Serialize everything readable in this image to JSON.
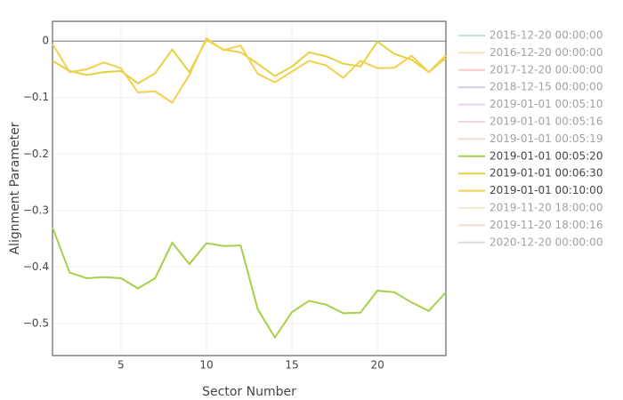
{
  "chart_data": {
    "type": "line",
    "xlabel": "Sector Number",
    "ylabel": "Alignment Parameter",
    "x": [
      1,
      2,
      3,
      4,
      5,
      6,
      7,
      8,
      9,
      10,
      11,
      12,
      13,
      14,
      15,
      16,
      17,
      18,
      19,
      20,
      21,
      22,
      23,
      24
    ],
    "xlim": [
      1,
      24
    ],
    "xticks": [
      5,
      10,
      15,
      20
    ],
    "ylim": [
      -0.557,
      0.035
    ],
    "yticks": [
      0,
      {
        "value": -0.1,
        "label": "−0.1"
      },
      {
        "value": -0.2,
        "label": "−0.2"
      },
      {
        "value": -0.3,
        "label": "−0.3"
      },
      {
        "value": -0.4,
        "label": "−0.4"
      },
      {
        "value": -0.5,
        "label": "−0.5"
      }
    ],
    "grid": true,
    "zeroline": true,
    "legend": "right",
    "series": [
      {
        "name": "2015-12-20 00:00:00",
        "color": "#7fc8b8",
        "visible": "legendonly",
        "values": [
          null,
          null,
          null,
          null,
          null,
          null,
          null,
          null,
          null,
          null,
          null,
          null,
          null,
          null,
          null,
          null,
          null,
          null,
          null,
          null,
          null,
          null,
          null,
          null
        ]
      },
      {
        "name": "2016-12-20 00:00:00",
        "color": "#f0c080",
        "visible": "legendonly",
        "values": [
          null,
          null,
          null,
          null,
          null,
          null,
          null,
          null,
          null,
          null,
          null,
          null,
          null,
          null,
          null,
          null,
          null,
          null,
          null,
          null,
          null,
          null,
          null,
          null
        ]
      },
      {
        "name": "2017-12-20 00:00:00",
        "color": "#f09090",
        "visible": "legendonly",
        "values": [
          null,
          null,
          null,
          null,
          null,
          null,
          null,
          null,
          null,
          null,
          null,
          null,
          null,
          null,
          null,
          null,
          null,
          null,
          null,
          null,
          null,
          null,
          null,
          null
        ]
      },
      {
        "name": "2018-12-15 00:00:00",
        "color": "#a0a0c8",
        "visible": "legendonly",
        "values": [
          null,
          null,
          null,
          null,
          null,
          null,
          null,
          null,
          null,
          null,
          null,
          null,
          null,
          null,
          null,
          null,
          null,
          null,
          null,
          null,
          null,
          null,
          null,
          null
        ]
      },
      {
        "name": "2019-01-01 00:05:10",
        "color": "#d8a0d8",
        "visible": "legendonly",
        "values": [
          null,
          null,
          null,
          null,
          null,
          null,
          null,
          null,
          null,
          null,
          null,
          null,
          null,
          null,
          null,
          null,
          null,
          null,
          null,
          null,
          null,
          null,
          null,
          null
        ]
      },
      {
        "name": "2019-01-01 00:05:16",
        "color": "#e8a8c8",
        "visible": "legendonly",
        "values": [
          null,
          null,
          null,
          null,
          null,
          null,
          null,
          null,
          null,
          null,
          null,
          null,
          null,
          null,
          null,
          null,
          null,
          null,
          null,
          null,
          null,
          null,
          null,
          null
        ]
      },
      {
        "name": "2019-01-01 00:05:19",
        "color": "#e8b8a8",
        "visible": "legendonly",
        "values": [
          null,
          null,
          null,
          null,
          null,
          null,
          null,
          null,
          null,
          null,
          null,
          null,
          null,
          null,
          null,
          null,
          null,
          null,
          null,
          null,
          null,
          null,
          null,
          null
        ]
      },
      {
        "name": "2019-01-01 00:05:20",
        "color": "#a6d04a",
        "visible": true,
        "values": [
          -0.33,
          -0.41,
          -0.42,
          -0.418,
          -0.42,
          -0.438,
          -0.42,
          -0.357,
          -0.395,
          -0.358,
          -0.363,
          -0.362,
          -0.475,
          -0.525,
          -0.48,
          -0.46,
          -0.467,
          -0.482,
          -0.481,
          -0.442,
          -0.445,
          -0.463,
          -0.478,
          -0.445
        ]
      },
      {
        "name": "2019-01-01 00:06:30",
        "color": "#e3d23c",
        "visible": true,
        "values": [
          -0.035,
          -0.053,
          -0.06,
          -0.055,
          -0.053,
          -0.075,
          -0.057,
          -0.015,
          -0.055,
          0.002,
          -0.015,
          -0.02,
          -0.04,
          -0.062,
          -0.045,
          -0.02,
          -0.027,
          -0.04,
          -0.045,
          -0.001,
          -0.023,
          -0.033,
          -0.055,
          -0.03
        ]
      },
      {
        "name": "2019-01-01 00:10:00",
        "color": "#f3d04e",
        "visible": true,
        "values": [
          -0.005,
          -0.055,
          -0.05,
          -0.038,
          -0.048,
          -0.091,
          -0.089,
          -0.109,
          -0.06,
          0.005,
          -0.016,
          -0.008,
          -0.058,
          -0.073,
          -0.054,
          -0.035,
          -0.043,
          -0.065,
          -0.035,
          -0.048,
          -0.047,
          -0.026,
          -0.055,
          -0.025
        ]
      },
      {
        "name": "2019-11-20 18:00:00",
        "color": "#f8d098",
        "visible": "legendonly",
        "values": [
          null,
          null,
          null,
          null,
          null,
          null,
          null,
          null,
          null,
          null,
          null,
          null,
          null,
          null,
          null,
          null,
          null,
          null,
          null,
          null,
          null,
          null,
          null,
          null
        ]
      },
      {
        "name": "2019-11-20 18:00:16",
        "color": "#e8b898",
        "visible": "legendonly",
        "values": [
          null,
          null,
          null,
          null,
          null,
          null,
          null,
          null,
          null,
          null,
          null,
          null,
          null,
          null,
          null,
          null,
          null,
          null,
          null,
          null,
          null,
          null,
          null,
          null
        ]
      },
      {
        "name": "2020-12-20 00:00:00",
        "color": "#b8b8b8",
        "visible": "legendonly",
        "values": [
          null,
          null,
          null,
          null,
          null,
          null,
          null,
          null,
          null,
          null,
          null,
          null,
          null,
          null,
          null,
          null,
          null,
          null,
          null,
          null,
          null,
          null,
          null,
          null
        ]
      }
    ]
  }
}
